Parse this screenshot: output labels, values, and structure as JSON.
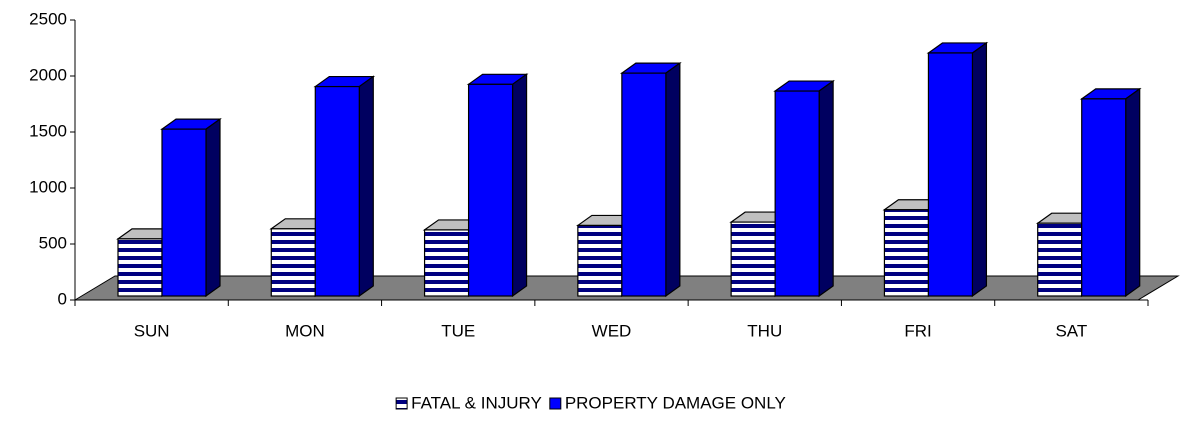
{
  "chart_data": {
    "type": "bar3d",
    "categories": [
      "SUN",
      "MON",
      "TUE",
      "WED",
      "THU",
      "FRI",
      "SAT"
    ],
    "series": [
      {
        "name": "FATAL & INJURY",
        "color": "#000080",
        "values": [
          510,
          600,
          590,
          630,
          660,
          770,
          650
        ]
      },
      {
        "name": "PROPERTY DAMAGE ONLY",
        "color": "#0000ff",
        "values": [
          1490,
          1870,
          1890,
          1990,
          1830,
          2170,
          1760
        ]
      }
    ],
    "ylim": [
      0,
      2500
    ],
    "yticks": [
      0,
      500,
      1000,
      1500,
      2000,
      2500
    ],
    "grid": false
  }
}
